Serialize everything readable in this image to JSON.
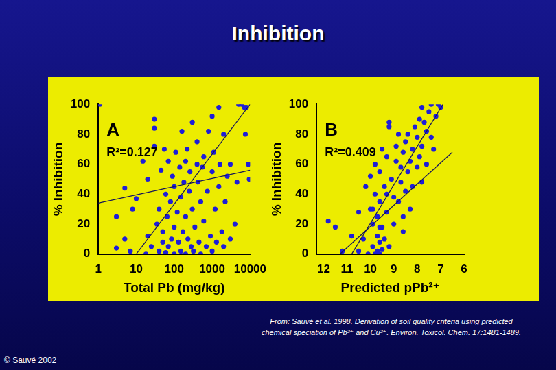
{
  "title": "Inhibition",
  "source": [
    "From: Sauvé et al. 1998. Derivation of soil quality criteria using predicted",
    "chemical speciation of Pb²⁺ and Cu²⁺. Environ. Toxicol. Chem. 17:1481-1489."
  ],
  "copyright": "© Sauvé 2002",
  "chart_data": [
    {
      "type": "scatter",
      "annotations": [
        "A",
        "R²=0.127"
      ],
      "x_label": "Total Pb (mg/kg)",
      "y_label": "% Inhibition",
      "log": "x",
      "grid": false,
      "xlim": [
        1,
        10000
      ],
      "xticks": [
        1,
        10,
        100,
        1000,
        10000
      ],
      "ylim": [
        0,
        100
      ],
      "yticks": [
        0,
        20,
        40,
        60,
        80,
        100
      ],
      "series": [
        {
          "type": "scatter",
          "color": "#1e1ed8",
          "marker": "circle",
          "x": [
            1.1,
            3,
            3,
            5,
            5,
            7,
            8,
            10,
            15,
            18,
            20,
            20,
            25,
            30,
            30,
            30,
            35,
            40,
            40,
            45,
            50,
            50,
            55,
            60,
            60,
            65,
            70,
            70,
            80,
            85,
            90,
            100,
            100,
            100,
            110,
            120,
            130,
            140,
            150,
            150,
            160,
            170,
            180,
            200,
            200,
            200,
            220,
            230,
            250,
            260,
            280,
            300,
            300,
            320,
            350,
            400,
            400,
            420,
            450,
            500,
            500,
            550,
            600,
            600,
            700,
            750,
            800,
            900,
            1000,
            1000,
            1000,
            1100,
            1200,
            1300,
            1500,
            1500,
            1600,
            1800,
            2000,
            2000,
            2200,
            2500,
            3000,
            3000,
            4000,
            4500,
            5000,
            6000,
            7000,
            7500,
            8000,
            9000,
            9500
          ],
          "values": [
            100,
            4,
            25,
            10,
            44,
            2,
            30,
            37,
            62,
            0,
            12,
            50,
            5,
            72,
            84,
            90,
            20,
            2,
            30,
            56,
            8,
            15,
            70,
            1,
            40,
            25,
            5,
            62,
            35,
            10,
            52,
            0,
            18,
            45,
            68,
            28,
            8,
            58,
            2,
            38,
            82,
            15,
            48,
            0,
            25,
            62,
            70,
            10,
            42,
            55,
            5,
            30,
            88,
            2,
            18,
            60,
            75,
            48,
            8,
            0,
            35,
            58,
            22,
            65,
            5,
            42,
            82,
            12,
            2,
            55,
            92,
            68,
            30,
            8,
            45,
            98,
            60,
            15,
            5,
            80,
            35,
            52,
            10,
            60,
            20,
            48,
            100,
            100,
            98,
            80,
            98,
            60,
            50
          ]
        },
        {
          "type": "line",
          "color": "#14145a",
          "line_style": "solid",
          "x": [
            1,
            10000
          ],
          "values": [
            34,
            56
          ]
        },
        {
          "type": "line",
          "color": "#14145a",
          "line_style": "solid",
          "x": [
            10,
            10000
          ],
          "values": [
            0,
            100
          ]
        }
      ]
    },
    {
      "type": "scatter",
      "annotations": [
        "B",
        "R²=0.409"
      ],
      "x_label": "Predicted pPb²⁺",
      "y_label": "% Inhibition",
      "grid": false,
      "xlim": [
        12.3,
        6
      ],
      "xticks": [
        12,
        11,
        10,
        9,
        8,
        7,
        6
      ],
      "ylim": [
        0,
        100
      ],
      "yticks": [
        0,
        20,
        40,
        60,
        80,
        100
      ],
      "series": [
        {
          "type": "scatter",
          "color": "#1e1ed8",
          "marker": "circle",
          "x": [
            11.8,
            11.5,
            11.2,
            10.8,
            10.5,
            10.5,
            10.3,
            10.2,
            10.1,
            10,
            10,
            9.9,
            9.9,
            9.8,
            9.8,
            9.8,
            9.7,
            9.7,
            9.7,
            9.6,
            9.6,
            9.6,
            9.6,
            9.5,
            9.5,
            9.5,
            9.4,
            9.4,
            9.3,
            9.3,
            9.2,
            9.2,
            9.2,
            9.1,
            9.0,
            9.0,
            8.9,
            8.9,
            8.8,
            8.8,
            8.7,
            8.7,
            8.6,
            8.6,
            8.5,
            8.5,
            8.4,
            8.4,
            8.3,
            8.3,
            8.2,
            8.2,
            8.1,
            8.0,
            8.0,
            7.9,
            7.9,
            7.8,
            7.8,
            7.7,
            7.6,
            7.6,
            7.5,
            7.4,
            7.4,
            7.3,
            7.2,
            7.0,
            7.1,
            7.8,
            9.3,
            9.9,
            8.6,
            9.6
          ],
          "values": [
            22,
            18,
            2,
            12,
            2,
            28,
            10,
            45,
            0,
            30,
            52,
            5,
            20,
            0,
            40,
            60,
            2,
            12,
            25,
            0,
            8,
            35,
            55,
            3,
            18,
            70,
            10,
            45,
            28,
            65,
            5,
            85,
            88,
            50,
            20,
            38,
            62,
            72,
            35,
            80,
            48,
            58,
            25,
            68,
            42,
            75,
            55,
            80,
            30,
            62,
            45,
            70,
            85,
            58,
            78,
            65,
            90,
            48,
            72,
            88,
            60,
            82,
            95,
            78,
            100,
            70,
            92,
            98,
            100,
            98,
            40,
            30,
            15,
            18
          ]
        },
        {
          "type": "line",
          "color": "#14145a",
          "line_style": "solid",
          "x": [
            10.8,
            6.9
          ],
          "values": [
            0,
            100
          ]
        },
        {
          "type": "line",
          "color": "#14145a",
          "line_style": "solid",
          "x": [
            11.3,
            6.5
          ],
          "values": [
            0,
            68
          ]
        }
      ]
    }
  ]
}
